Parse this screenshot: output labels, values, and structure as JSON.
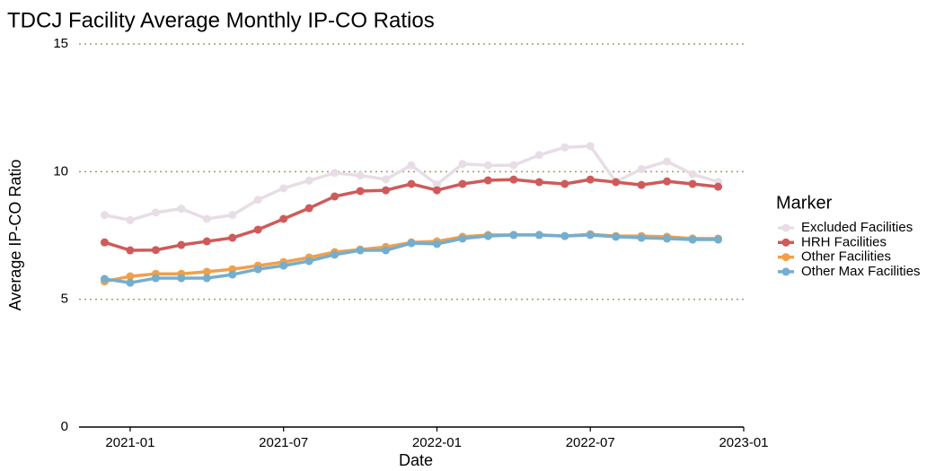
{
  "chart_data": {
    "type": "line",
    "title": "TDCJ Facility Average Monthly IP-CO Ratios",
    "x_label": "Date",
    "y_label": "Average IP-CO Ratio",
    "x": [
      "2020-12",
      "2021-01",
      "2021-02",
      "2021-03",
      "2021-04",
      "2021-05",
      "2021-06",
      "2021-07",
      "2021-08",
      "2021-09",
      "2021-10",
      "2021-11",
      "2021-12",
      "2022-01",
      "2022-02",
      "2022-03",
      "2022-04",
      "2022-05",
      "2022-06",
      "2022-07",
      "2022-08",
      "2022-09",
      "2022-10",
      "2022-11",
      "2022-12"
    ],
    "xlim": [
      "2020-11",
      "2023-01"
    ],
    "xticks": [
      "2021-01",
      "2021-07",
      "2022-01",
      "2022-07",
      "2023-01"
    ],
    "ylim": [
      0,
      15
    ],
    "yticks": [
      0,
      5,
      10,
      15
    ],
    "grid": true,
    "legend_title": "Marker",
    "legend_position": "right",
    "series": [
      {
        "name": "Excluded Facilities",
        "color": "#e8dde5",
        "values": [
          8.3,
          8.1,
          8.4,
          8.55,
          8.15,
          8.3,
          8.9,
          9.35,
          9.65,
          9.95,
          9.85,
          9.7,
          10.25,
          9.5,
          10.3,
          10.25,
          10.25,
          10.65,
          10.95,
          11.0,
          9.6,
          10.1,
          10.4,
          9.9,
          9.6
        ]
      },
      {
        "name": "HRH Facilities",
        "color": "#d05a5a",
        "values": [
          7.23,
          6.92,
          6.93,
          7.13,
          7.27,
          7.41,
          7.73,
          8.15,
          8.57,
          9.03,
          9.24,
          9.27,
          9.52,
          9.27,
          9.52,
          9.66,
          9.69,
          9.59,
          9.52,
          9.69,
          9.59,
          9.48,
          9.62,
          9.52,
          9.41
        ]
      },
      {
        "name": "Other Facilities",
        "color": "#f0a04b",
        "values": [
          5.7,
          5.9,
          6.0,
          6.0,
          6.08,
          6.18,
          6.32,
          6.46,
          6.64,
          6.85,
          6.95,
          7.05,
          7.23,
          7.27,
          7.45,
          7.52,
          7.52,
          7.52,
          7.48,
          7.55,
          7.48,
          7.48,
          7.45,
          7.38,
          7.38
        ]
      },
      {
        "name": "Other Max Facilities",
        "color": "#74aecf",
        "values": [
          5.8,
          5.65,
          5.83,
          5.83,
          5.83,
          5.97,
          6.18,
          6.32,
          6.5,
          6.75,
          6.92,
          6.92,
          7.2,
          7.17,
          7.38,
          7.48,
          7.52,
          7.52,
          7.48,
          7.52,
          7.45,
          7.41,
          7.38,
          7.34,
          7.34
        ]
      }
    ]
  }
}
